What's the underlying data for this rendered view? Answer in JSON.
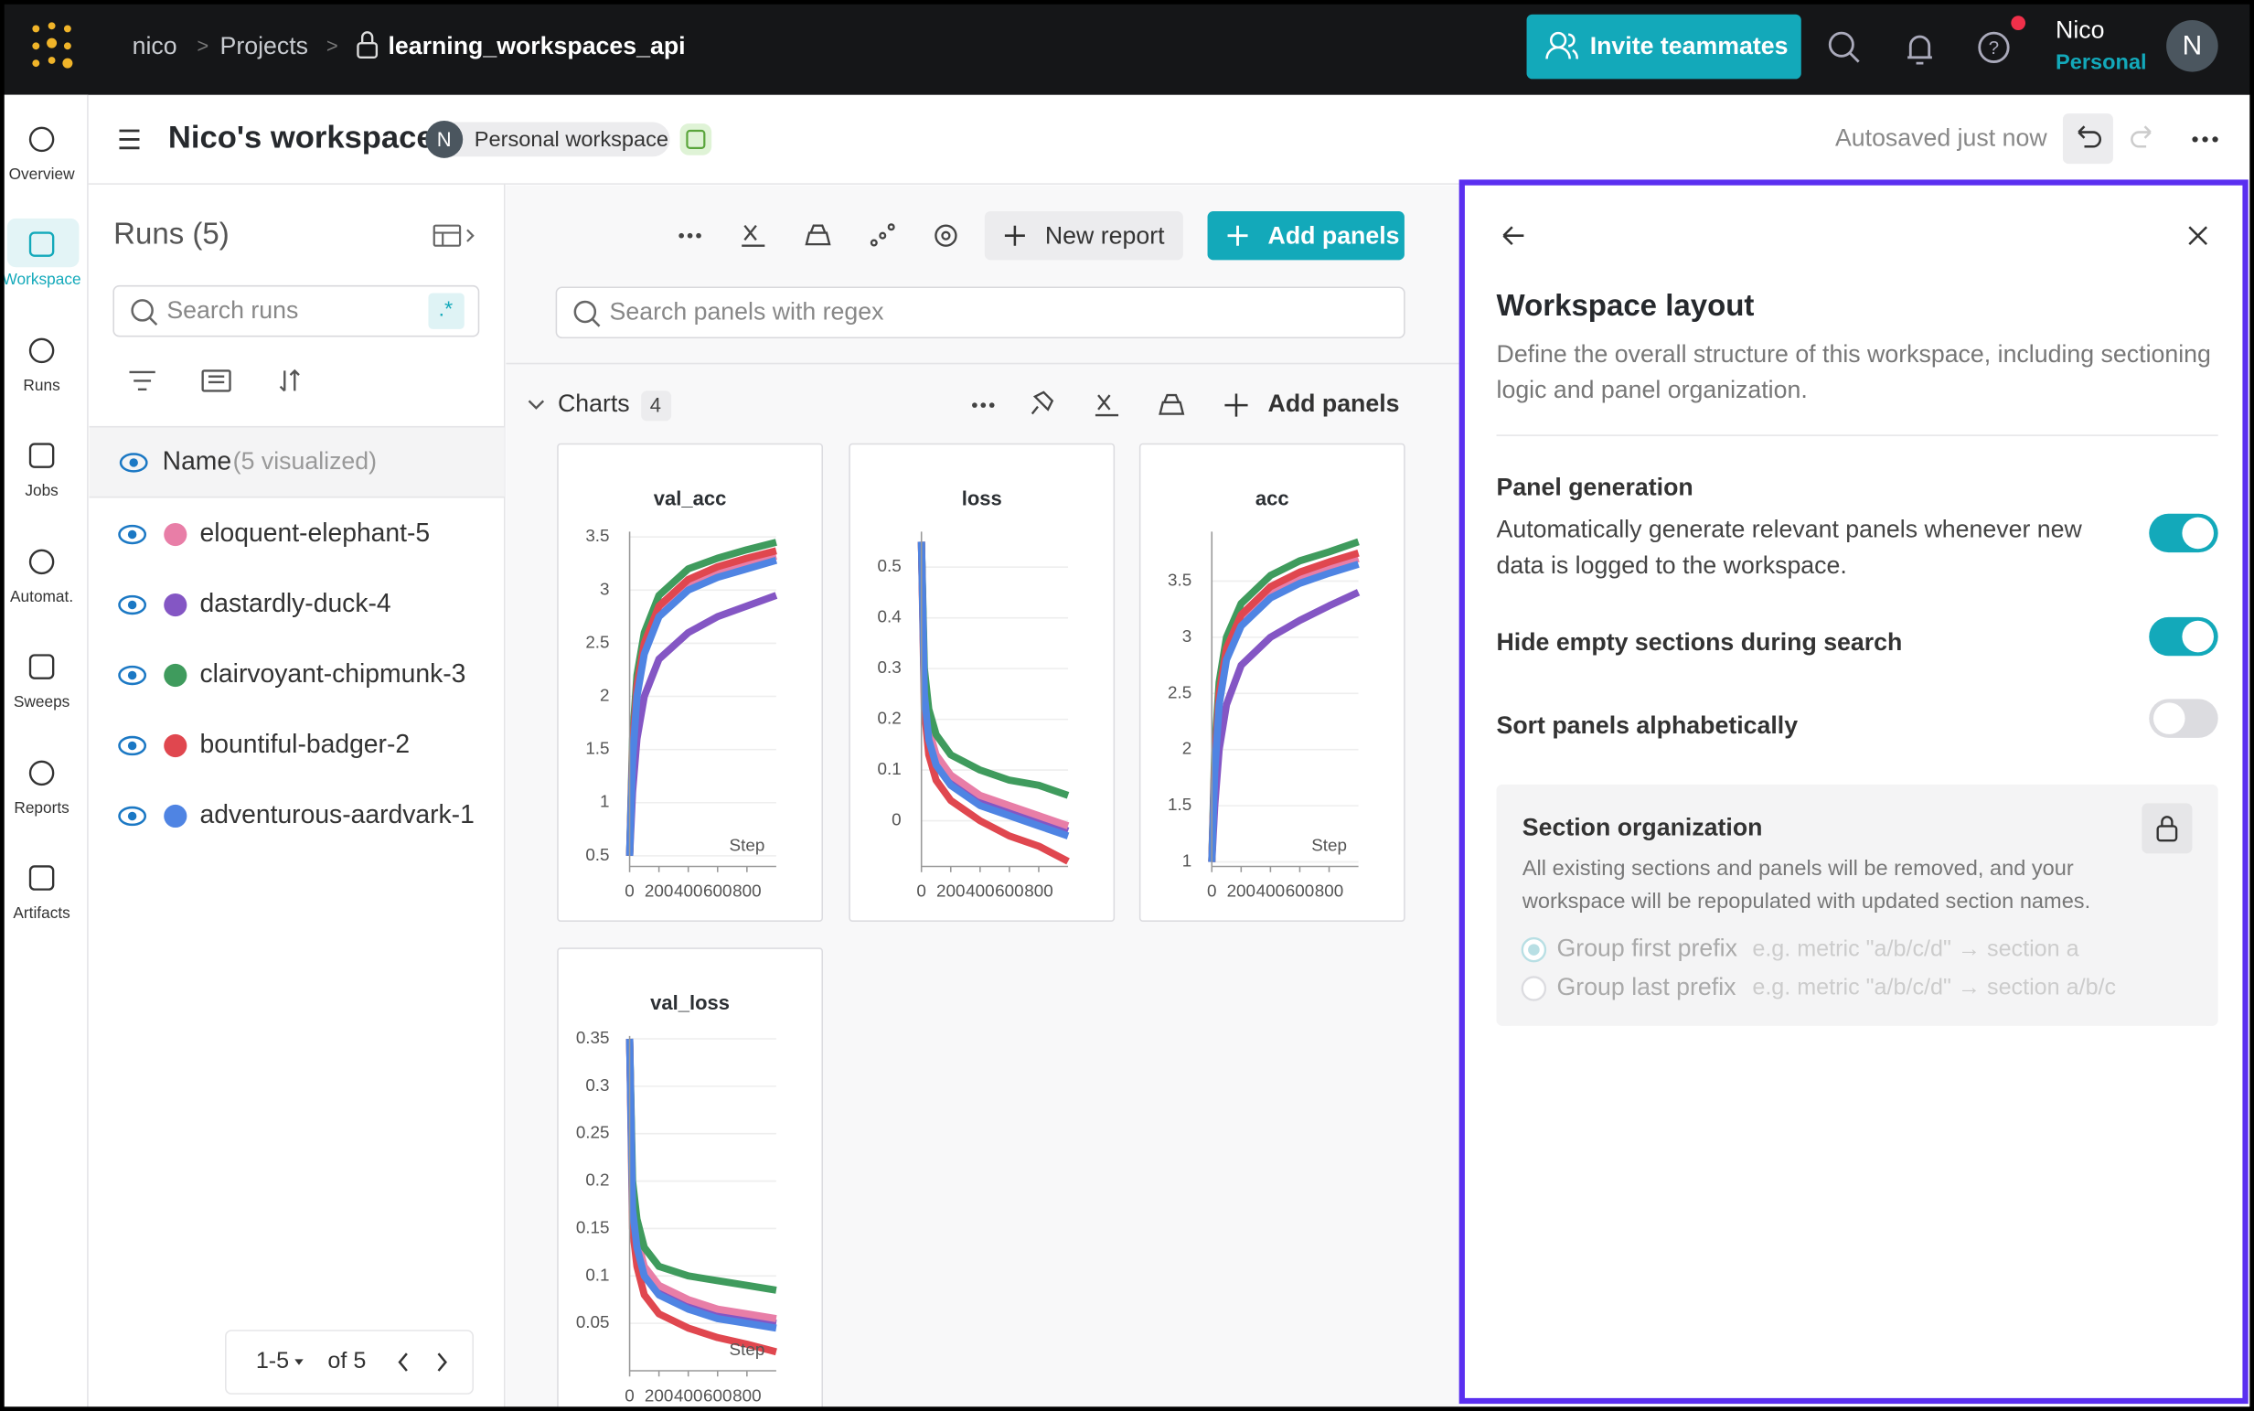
{
  "header": {
    "breadcrumb": [
      "nico",
      "Projects",
      "learning_workspaces_api"
    ],
    "invite": "Invite teammates",
    "user": "Nico",
    "plan": "Personal",
    "avatar": "N"
  },
  "nav": [
    {
      "label": "Overview"
    },
    {
      "label": "Workspace",
      "active": true
    },
    {
      "label": "Runs"
    },
    {
      "label": "Jobs"
    },
    {
      "label": "Automat."
    },
    {
      "label": "Sweeps"
    },
    {
      "label": "Reports"
    },
    {
      "label": "Artifacts"
    }
  ],
  "workspace": {
    "title": "Nico's workspace",
    "avatar": "N",
    "badge": "Personal workspace",
    "autosave": "Autosaved just now"
  },
  "runs": {
    "title": "Runs (5)",
    "search": "Search runs",
    "regex": ".*",
    "column": "Name",
    "visualized": "(5 visualized)",
    "items": [
      {
        "name": "eloquent-elephant-5",
        "color": "#e87ea7"
      },
      {
        "name": "dastardly-duck-4",
        "color": "#8456c4"
      },
      {
        "name": "clairvoyant-chipmunk-3",
        "color": "#3f9b5d"
      },
      {
        "name": "bountiful-badger-2",
        "color": "#e0474f"
      },
      {
        "name": "adventurous-aardvark-1",
        "color": "#4f84e3"
      }
    ],
    "pager": {
      "range": "1-5",
      "total": "of 5"
    }
  },
  "toolbar": {
    "new_report": "New report",
    "add_panels": "Add panels",
    "search": "Search panels with regex"
  },
  "section": {
    "title": "Charts",
    "count": 4,
    "add_panels": "Add panels"
  },
  "chart_data": [
    {
      "type": "line",
      "title": "val_acc",
      "xlabel": "Step",
      "x": [
        0,
        20,
        50,
        100,
        200,
        400,
        600,
        800,
        1000
      ],
      "xlim": [
        0,
        1000
      ],
      "xticks": [
        0,
        200,
        400,
        600,
        800
      ],
      "ylim": [
        0.4,
        3.55
      ],
      "yticks": [
        0.5,
        1,
        1.5,
        2,
        2.5,
        3,
        3.5
      ],
      "series": [
        {
          "color": "#8456c4",
          "values": [
            0.5,
            1.1,
            1.6,
            2.0,
            2.35,
            2.6,
            2.75,
            2.85,
            2.95
          ]
        },
        {
          "color": "#e87ea7",
          "values": [
            0.5,
            1.45,
            2.05,
            2.45,
            2.8,
            3.05,
            3.17,
            3.25,
            3.32
          ]
        },
        {
          "color": "#3f9b5d",
          "values": [
            0.5,
            1.6,
            2.2,
            2.6,
            2.95,
            3.2,
            3.3,
            3.38,
            3.45
          ]
        },
        {
          "color": "#e0474f",
          "values": [
            0.5,
            1.5,
            2.1,
            2.5,
            2.85,
            3.1,
            3.22,
            3.3,
            3.37
          ]
        },
        {
          "color": "#4f84e3",
          "values": [
            0.5,
            1.4,
            2.0,
            2.4,
            2.75,
            3.0,
            3.12,
            3.2,
            3.28
          ]
        }
      ]
    },
    {
      "type": "line",
      "title": "loss",
      "x": [
        0,
        20,
        50,
        100,
        200,
        400,
        600,
        800,
        1000
      ],
      "xlim": [
        0,
        1000
      ],
      "xticks": [
        0,
        200,
        400,
        600,
        800
      ],
      "ylim": [
        -0.09,
        0.57
      ],
      "yticks": [
        0,
        0.1,
        0.2,
        0.3,
        0.4,
        0.5
      ],
      "series": [
        {
          "color": "#8456c4",
          "values": [
            0.55,
            0.26,
            0.17,
            0.12,
            0.08,
            0.04,
            0.02,
            0.0,
            -0.02
          ]
        },
        {
          "color": "#e87ea7",
          "values": [
            0.55,
            0.27,
            0.18,
            0.13,
            0.09,
            0.05,
            0.03,
            0.01,
            -0.01
          ]
        },
        {
          "color": "#3f9b5d",
          "values": [
            0.55,
            0.3,
            0.22,
            0.17,
            0.13,
            0.1,
            0.08,
            0.07,
            0.05
          ]
        },
        {
          "color": "#e0474f",
          "values": [
            0.55,
            0.22,
            0.13,
            0.08,
            0.04,
            0.0,
            -0.03,
            -0.05,
            -0.08
          ]
        },
        {
          "color": "#4f84e3",
          "values": [
            0.55,
            0.25,
            0.16,
            0.11,
            0.07,
            0.03,
            0.01,
            -0.01,
            -0.03
          ]
        }
      ]
    },
    {
      "type": "line",
      "title": "acc",
      "xlabel": "Step",
      "x": [
        0,
        20,
        50,
        100,
        200,
        400,
        600,
        800,
        1000
      ],
      "xlim": [
        0,
        1000
      ],
      "xticks": [
        0,
        200,
        400,
        600,
        800
      ],
      "ylim": [
        0.96,
        3.94
      ],
      "yticks": [
        1,
        1.5,
        2,
        2.5,
        3,
        3.5
      ],
      "series": [
        {
          "color": "#8456c4",
          "values": [
            1.0,
            1.5,
            2.0,
            2.4,
            2.75,
            3.0,
            3.15,
            3.28,
            3.4
          ]
        },
        {
          "color": "#e87ea7",
          "values": [
            1.0,
            1.85,
            2.45,
            2.85,
            3.15,
            3.4,
            3.53,
            3.62,
            3.7
          ]
        },
        {
          "color": "#3f9b5d",
          "values": [
            1.0,
            2.0,
            2.6,
            3.0,
            3.3,
            3.55,
            3.68,
            3.76,
            3.85
          ]
        },
        {
          "color": "#e0474f",
          "values": [
            1.0,
            1.9,
            2.5,
            2.9,
            3.2,
            3.45,
            3.58,
            3.67,
            3.75
          ]
        },
        {
          "color": "#4f84e3",
          "values": [
            1.0,
            1.8,
            2.4,
            2.8,
            3.1,
            3.35,
            3.48,
            3.57,
            3.65
          ]
        }
      ]
    },
    {
      "type": "line",
      "title": "val_loss",
      "xlabel": "Step",
      "x": [
        0,
        20,
        50,
        100,
        200,
        400,
        600,
        800,
        1000
      ],
      "xlim": [
        0,
        1000
      ],
      "xticks": [
        0,
        200,
        400,
        600,
        800
      ],
      "ylim": [
        0.0,
        0.353
      ],
      "yticks": [
        0.05,
        0.1,
        0.15,
        0.2,
        0.25,
        0.3,
        0.35
      ],
      "series": [
        {
          "color": "#8456c4",
          "values": [
            0.35,
            0.18,
            0.135,
            0.105,
            0.085,
            0.07,
            0.06,
            0.055,
            0.05
          ]
        },
        {
          "color": "#e87ea7",
          "values": [
            0.35,
            0.18,
            0.14,
            0.11,
            0.09,
            0.075,
            0.065,
            0.06,
            0.055
          ]
        },
        {
          "color": "#3f9b5d",
          "values": [
            0.35,
            0.2,
            0.16,
            0.13,
            0.11,
            0.1,
            0.095,
            0.09,
            0.085
          ]
        },
        {
          "color": "#e0474f",
          "values": [
            0.35,
            0.15,
            0.11,
            0.08,
            0.06,
            0.045,
            0.035,
            0.028,
            0.02
          ]
        },
        {
          "color": "#4f84e3",
          "values": [
            0.35,
            0.17,
            0.13,
            0.1,
            0.08,
            0.065,
            0.055,
            0.05,
            0.045
          ]
        }
      ]
    }
  ],
  "layout": {
    "title": "Workspace layout",
    "description": "Define the overall structure of this workspace, including sectioning logic and panel organization.",
    "options": [
      {
        "label": "Panel generation",
        "description": "Automatically generate relevant panels whenever new data is logged to the workspace.",
        "on": true
      },
      {
        "label": "Hide empty sections during search",
        "on": true
      },
      {
        "label": "Sort panels alphabetically",
        "on": false
      }
    ],
    "section": {
      "title": "Section organization",
      "description": "All existing sections and panels will be removed, and your workspace will be repopulated with updated section names.",
      "options": [
        {
          "label": "Group first prefix",
          "example": "e.g. metric \"a/b/c/d\" → section a",
          "selected": true
        },
        {
          "label": "Group last prefix",
          "example": "e.g. metric \"a/b/c/d\" → section a/b/c",
          "selected": false
        }
      ]
    }
  }
}
